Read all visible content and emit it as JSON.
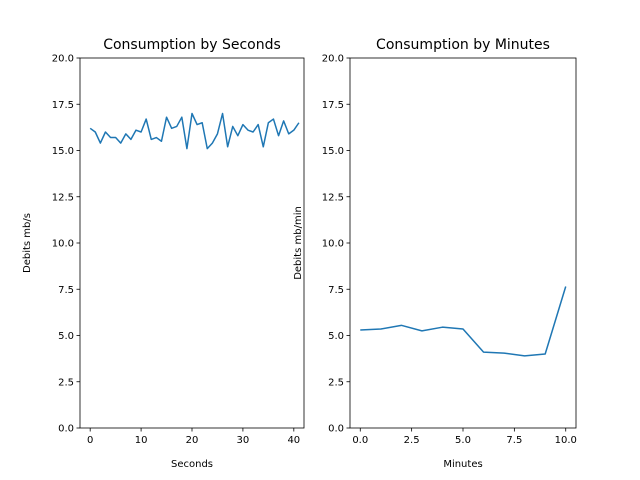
{
  "chart_data": [
    {
      "type": "line",
      "title": "Consumption by Seconds",
      "xlabel": "Seconds",
      "ylabel": "Debits mb/s",
      "xlim": [
        -2,
        42
      ],
      "ylim": [
        0,
        20
      ],
      "xticks": [
        "0",
        "10",
        "20",
        "30",
        "40"
      ],
      "yticks": [
        "0.0",
        "2.5",
        "5.0",
        "7.5",
        "10.0",
        "12.5",
        "15.0",
        "17.5",
        "20.0"
      ],
      "grid": false,
      "color": "#1f77b4",
      "x": [
        0,
        1,
        2,
        3,
        4,
        5,
        6,
        7,
        8,
        9,
        10,
        11,
        12,
        13,
        14,
        15,
        16,
        17,
        18,
        19,
        20,
        21,
        22,
        23,
        24,
        25,
        26,
        27,
        28,
        29,
        30,
        31,
        32,
        33,
        34,
        35,
        36,
        37,
        38,
        39,
        40,
        41
      ],
      "y": [
        16.2,
        16.0,
        15.4,
        16.0,
        15.7,
        15.7,
        15.4,
        15.9,
        15.6,
        16.1,
        16.0,
        16.7,
        15.6,
        15.7,
        15.5,
        16.8,
        16.2,
        16.3,
        16.8,
        15.1,
        17.0,
        16.4,
        16.5,
        15.1,
        15.4,
        15.9,
        17.0,
        15.2,
        16.3,
        15.8,
        16.4,
        16.1,
        16.0,
        16.4,
        15.2,
        16.5,
        16.7,
        15.8,
        16.6,
        15.9,
        16.1,
        16.5
      ]
    },
    {
      "type": "line",
      "title": "Consumption by Minutes",
      "xlabel": "Minutes",
      "ylabel": "Debits mb/min",
      "xlim": [
        -0.5,
        10.5
      ],
      "ylim": [
        0,
        20
      ],
      "xticks": [
        "0.0",
        "2.5",
        "5.0",
        "7.5",
        "10.0"
      ],
      "yticks": [
        "0.0",
        "2.5",
        "5.0",
        "7.5",
        "10.0",
        "12.5",
        "15.0",
        "17.5",
        "20.0"
      ],
      "grid": false,
      "color": "#1f77b4",
      "x": [
        0,
        1,
        2,
        3,
        4,
        5,
        6,
        7,
        8,
        9,
        10
      ],
      "y": [
        5.3,
        5.35,
        5.55,
        5.25,
        5.45,
        5.35,
        4.1,
        4.05,
        3.9,
        4.0,
        7.65
      ]
    }
  ]
}
